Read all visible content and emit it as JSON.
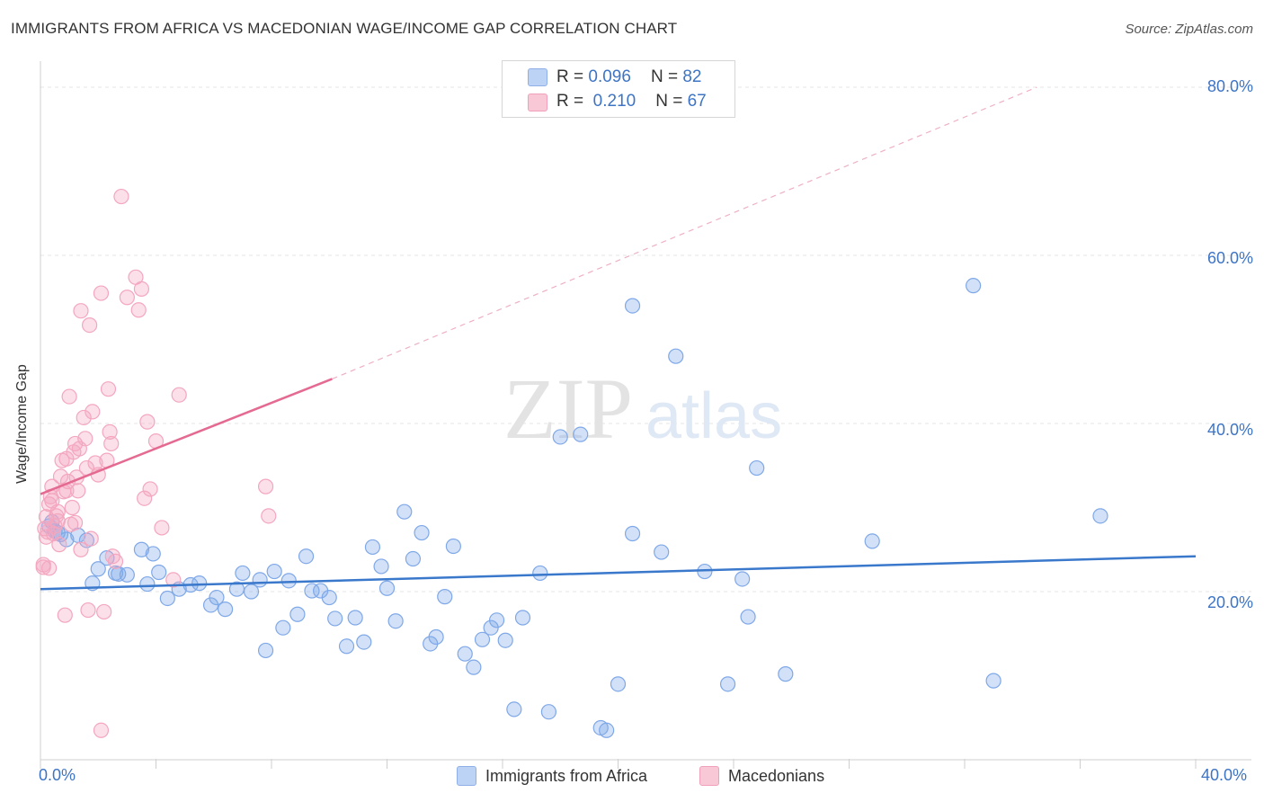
{
  "title": "IMMIGRANTS FROM AFRICA VS MACEDONIAN WAGE/INCOME GAP CORRELATION CHART",
  "source": "Source: ZipAtlas.com",
  "watermark": {
    "zip": "ZIP",
    "atlas": "atlas"
  },
  "chart_data": {
    "type": "scatter",
    "ylabel": "Wage/Income Gap",
    "xlim": [
      0,
      40
    ],
    "ylim": [
      0,
      80
    ],
    "x_ticks": [
      "0.0%",
      "40.0%"
    ],
    "y_ticks": [
      "20.0%",
      "40.0%",
      "60.0%",
      "80.0%"
    ],
    "y_tick_values": [
      20,
      40,
      60,
      80
    ],
    "legend": {
      "rows": [
        {
          "r_label": "R =",
          "r_value": "0.096",
          "n_label": "N =",
          "n_value": "82"
        },
        {
          "r_label": "R =",
          "r_value": "0.210",
          "n_label": "N =",
          "n_value": "67"
        }
      ]
    },
    "series": [
      {
        "name": "Immigrants from Africa",
        "color": "#7fa8e8",
        "line_color": "#3a78cc",
        "trend": {
          "x": [
            0,
            40
          ],
          "y": [
            20.3,
            24.2
          ]
        },
        "points": [
          [
            0.3,
            27.8
          ],
          [
            0.5,
            27.2
          ],
          [
            0.7,
            26.8
          ],
          [
            0.9,
            26.2
          ],
          [
            1.3,
            26.7
          ],
          [
            1.6,
            26.1
          ],
          [
            0.6,
            27.0
          ],
          [
            0.4,
            28.3
          ],
          [
            1.8,
            21.0
          ],
          [
            2.0,
            22.7
          ],
          [
            2.3,
            24.0
          ],
          [
            2.6,
            22.2
          ],
          [
            2.7,
            22.1
          ],
          [
            3.0,
            22.0
          ],
          [
            3.5,
            25.0
          ],
          [
            3.7,
            20.9
          ],
          [
            3.9,
            24.5
          ],
          [
            4.1,
            22.3
          ],
          [
            4.4,
            19.2
          ],
          [
            4.8,
            20.3
          ],
          [
            5.2,
            20.8
          ],
          [
            5.5,
            21.0
          ],
          [
            5.9,
            18.4
          ],
          [
            6.1,
            19.3
          ],
          [
            6.4,
            17.9
          ],
          [
            6.8,
            20.3
          ],
          [
            7.0,
            22.2
          ],
          [
            7.3,
            20.0
          ],
          [
            7.6,
            21.4
          ],
          [
            7.8,
            13.0
          ],
          [
            8.1,
            22.4
          ],
          [
            8.4,
            15.7
          ],
          [
            8.6,
            21.3
          ],
          [
            8.9,
            17.3
          ],
          [
            9.2,
            24.2
          ],
          [
            9.4,
            20.1
          ],
          [
            9.7,
            20.1
          ],
          [
            10.0,
            19.3
          ],
          [
            10.2,
            16.8
          ],
          [
            10.6,
            13.5
          ],
          [
            10.9,
            16.9
          ],
          [
            11.2,
            14.0
          ],
          [
            11.5,
            25.3
          ],
          [
            11.8,
            23.0
          ],
          [
            12.0,
            20.4
          ],
          [
            12.3,
            16.5
          ],
          [
            12.6,
            29.5
          ],
          [
            12.9,
            23.9
          ],
          [
            13.2,
            27.0
          ],
          [
            13.5,
            13.8
          ],
          [
            13.7,
            14.6
          ],
          [
            14.0,
            19.4
          ],
          [
            14.3,
            25.4
          ],
          [
            14.7,
            12.6
          ],
          [
            15.0,
            11.0
          ],
          [
            15.3,
            14.3
          ],
          [
            15.6,
            15.7
          ],
          [
            15.8,
            16.6
          ],
          [
            16.1,
            14.2
          ],
          [
            16.4,
            6.0
          ],
          [
            16.7,
            16.9
          ],
          [
            17.3,
            22.2
          ],
          [
            17.6,
            5.7
          ],
          [
            18.0,
            38.4
          ],
          [
            18.7,
            38.7
          ],
          [
            19.4,
            3.8
          ],
          [
            19.6,
            3.5
          ],
          [
            20.0,
            9.0
          ],
          [
            20.5,
            26.9
          ],
          [
            20.5,
            54.0
          ],
          [
            21.5,
            24.7
          ],
          [
            22.0,
            48.0
          ],
          [
            23.0,
            22.4
          ],
          [
            23.8,
            9.0
          ],
          [
            24.3,
            21.5
          ],
          [
            24.5,
            17.0
          ],
          [
            24.8,
            34.7
          ],
          [
            25.8,
            10.2
          ],
          [
            28.8,
            26.0
          ],
          [
            32.3,
            56.4
          ],
          [
            33.0,
            9.4
          ],
          [
            36.7,
            29.0
          ]
        ]
      },
      {
        "name": "Macedonians",
        "color": "#f4a6bf",
        "line_color": "#e56a92",
        "trend": {
          "x": [
            0,
            10.1
          ],
          "y": [
            31.6,
            45.3
          ]
        },
        "trend_dashed": {
          "x": [
            10.1,
            34.5
          ],
          "y": [
            45.3,
            80.0
          ]
        },
        "points": [
          [
            0.1,
            23.2
          ],
          [
            0.1,
            22.9
          ],
          [
            0.15,
            27.5
          ],
          [
            0.2,
            28.9
          ],
          [
            0.25,
            27.1
          ],
          [
            0.3,
            30.4
          ],
          [
            0.35,
            31.3
          ],
          [
            0.4,
            32.5
          ],
          [
            0.45,
            26.9
          ],
          [
            0.5,
            27.8
          ],
          [
            0.55,
            29.0
          ],
          [
            0.6,
            28.4
          ],
          [
            0.65,
            25.6
          ],
          [
            0.7,
            33.7
          ],
          [
            0.75,
            35.6
          ],
          [
            0.8,
            31.9
          ],
          [
            0.85,
            17.2
          ],
          [
            0.9,
            35.8
          ],
          [
            0.95,
            33.1
          ],
          [
            1.0,
            43.2
          ],
          [
            1.05,
            28.0
          ],
          [
            1.1,
            30.0
          ],
          [
            1.15,
            36.6
          ],
          [
            1.2,
            37.6
          ],
          [
            1.25,
            33.6
          ],
          [
            1.3,
            32.0
          ],
          [
            1.35,
            37.0
          ],
          [
            1.4,
            25.0
          ],
          [
            1.5,
            40.7
          ],
          [
            1.55,
            38.2
          ],
          [
            1.6,
            34.7
          ],
          [
            1.65,
            17.8
          ],
          [
            1.7,
            51.7
          ],
          [
            1.75,
            26.3
          ],
          [
            1.8,
            41.4
          ],
          [
            1.9,
            35.3
          ],
          [
            2.0,
            33.9
          ],
          [
            2.1,
            55.5
          ],
          [
            2.2,
            17.6
          ],
          [
            2.3,
            35.6
          ],
          [
            2.35,
            44.1
          ],
          [
            2.4,
            39.0
          ],
          [
            2.45,
            37.6
          ],
          [
            2.5,
            24.2
          ],
          [
            2.6,
            23.6
          ],
          [
            2.8,
            67.0
          ],
          [
            3.0,
            55.0
          ],
          [
            3.3,
            57.4
          ],
          [
            3.4,
            53.5
          ],
          [
            3.5,
            56.0
          ],
          [
            3.6,
            31.1
          ],
          [
            3.7,
            40.2
          ],
          [
            3.8,
            32.2
          ],
          [
            4.0,
            37.9
          ],
          [
            4.2,
            27.6
          ],
          [
            4.6,
            21.4
          ],
          [
            4.8,
            43.4
          ],
          [
            1.4,
            53.4
          ],
          [
            2.1,
            3.5
          ],
          [
            7.8,
            32.5
          ],
          [
            7.9,
            29.0
          ],
          [
            0.3,
            22.8
          ],
          [
            0.6,
            29.5
          ],
          [
            0.9,
            32.0
          ],
          [
            1.2,
            28.2
          ],
          [
            0.4,
            30.8
          ],
          [
            0.2,
            26.5
          ]
        ]
      }
    ]
  }
}
